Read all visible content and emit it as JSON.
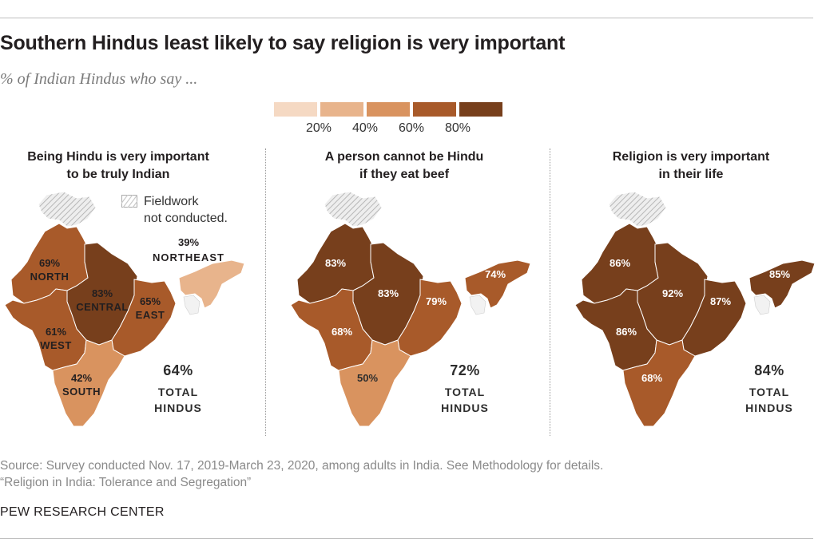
{
  "title": "Southern Hindus least likely to say religion is very important",
  "subtitle": "% of Indian Hindus who say ...",
  "colors": {
    "c0_20": "#f5d9c3",
    "c20_40": "#e8b48c",
    "c40_60": "#d9935f",
    "c60_80": "#a85a2a",
    "c80_100": "#773f1c",
    "fieldwork_hatch": "#c9c9c9"
  },
  "legend": {
    "labels": [
      "20%",
      "40%",
      "60%",
      "80%"
    ]
  },
  "fieldwork_note": {
    "line1": "Fieldwork",
    "line2": "not conducted."
  },
  "panels": [
    {
      "title_line1": "Being Hindu is very important",
      "title_line2": "to be truly Indian",
      "regions": {
        "north": {
          "value": 69,
          "label": "69%",
          "name": "NORTH"
        },
        "central": {
          "value": 83,
          "label": "83%",
          "name": "CENTRAL"
        },
        "east": {
          "value": 65,
          "label": "65%",
          "name": "EAST"
        },
        "west": {
          "value": 61,
          "label": "61%",
          "name": "WEST"
        },
        "south": {
          "value": 42,
          "label": "42%",
          "name": "SOUTH"
        },
        "northeast": {
          "value": 39,
          "label": "39%",
          "name": "NORTHEAST"
        }
      },
      "total_pct": "64%",
      "total_label_1": "TOTAL",
      "total_label_2": "HINDUS"
    },
    {
      "title_line1": "A person cannot be Hindu",
      "title_line2": "if they eat beef",
      "regions": {
        "north": {
          "value": 83,
          "label": "83%"
        },
        "central": {
          "value": 83,
          "label": "83%"
        },
        "east": {
          "value": 79,
          "label": "79%"
        },
        "west": {
          "value": 68,
          "label": "68%"
        },
        "south": {
          "value": 50,
          "label": "50%"
        },
        "northeast": {
          "value": 74,
          "label": "74%"
        }
      },
      "total_pct": "72%",
      "total_label_1": "TOTAL",
      "total_label_2": "HINDUS"
    },
    {
      "title_line1": "Religion is very important",
      "title_line2": "in their life",
      "regions": {
        "north": {
          "value": 86,
          "label": "86%"
        },
        "central": {
          "value": 92,
          "label": "92%"
        },
        "east": {
          "value": 87,
          "label": "87%"
        },
        "west": {
          "value": 86,
          "label": "86%"
        },
        "south": {
          "value": 68,
          "label": "68%"
        },
        "northeast": {
          "value": 85,
          "label": "85%"
        }
      },
      "total_pct": "84%",
      "total_label_1": "TOTAL",
      "total_label_2": "HINDUS"
    }
  ],
  "source_line1": "Source: Survey conducted Nov. 17, 2019-March 23, 2020, among adults in India. See Methodology for details.",
  "source_line2": "“Religion in India: Tolerance and Segregation”",
  "brand": "PEW RESEARCH CENTER"
}
